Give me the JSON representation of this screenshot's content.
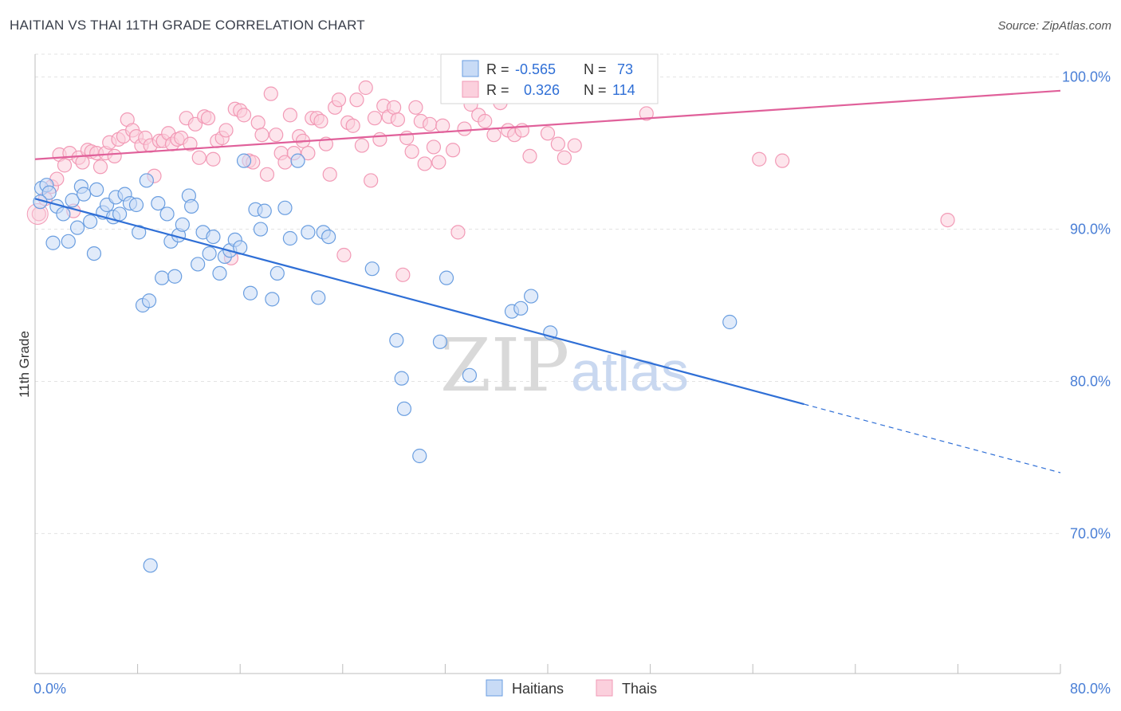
{
  "title": "HAITIAN VS THAI 11TH GRADE CORRELATION CHART",
  "source": "Source: ZipAtlas.com",
  "watermark": {
    "zip": "ZIP",
    "atlas": "atlas"
  },
  "colors": {
    "haitians": "#6a9ee0",
    "thais": "#f29ab6",
    "haitians_line": "#2f6fd6",
    "thais_line": "#e0609a"
  },
  "legend_top": [
    {
      "r_label": "R =",
      "r_value": "-0.565",
      "n_label": "N =",
      "n_value": "73"
    },
    {
      "r_label": "R =",
      "r_value": "0.326",
      "n_label": "N =",
      "n_value": "114"
    }
  ],
  "legend_bottom": [
    "Haitians",
    "Thais"
  ],
  "chart_data": {
    "type": "scatter",
    "title": "HAITIAN VS THAI 11TH GRADE CORRELATION CHART",
    "xlabel": "",
    "ylabel": "11th Grade",
    "xlim": [
      0,
      80
    ],
    "ylim": [
      60.8,
      101.5
    ],
    "x_tick_labels": [
      "0.0%",
      "80.0%"
    ],
    "y_ticks": [
      70,
      80,
      90,
      100
    ],
    "y_tick_labels": [
      "70.0%",
      "80.0%",
      "90.0%",
      "100.0%"
    ],
    "grid": true,
    "legend_placement": "top-center",
    "series": [
      {
        "name": "Haitians",
        "trend": {
          "x0": 0,
          "y0": 92.0,
          "x1": 60,
          "y1": 78.5,
          "dashed_to_x": 80,
          "dashed_to_y": 74.0
        },
        "points": [
          [
            0.5,
            92.7
          ],
          [
            0.9,
            92.9
          ],
          [
            1.1,
            92.4
          ],
          [
            1.4,
            89.1
          ],
          [
            1.7,
            91.5
          ],
          [
            2.2,
            91.0
          ],
          [
            2.6,
            89.2
          ],
          [
            2.9,
            91.9
          ],
          [
            3.3,
            90.1
          ],
          [
            3.6,
            92.8
          ],
          [
            3.8,
            92.3
          ],
          [
            4.3,
            90.5
          ],
          [
            4.6,
            88.4
          ],
          [
            4.8,
            92.6
          ],
          [
            5.3,
            91.1
          ],
          [
            5.6,
            91.6
          ],
          [
            6.1,
            90.8
          ],
          [
            6.3,
            92.1
          ],
          [
            6.6,
            91.0
          ],
          [
            7.0,
            92.3
          ],
          [
            7.4,
            91.7
          ],
          [
            7.9,
            91.6
          ],
          [
            8.1,
            89.8
          ],
          [
            8.4,
            85.0
          ],
          [
            8.7,
            93.2
          ],
          [
            8.9,
            85.3
          ],
          [
            9.6,
            91.7
          ],
          [
            9.9,
            86.8
          ],
          [
            10.3,
            91.0
          ],
          [
            10.6,
            89.2
          ],
          [
            10.9,
            86.9
          ],
          [
            11.2,
            89.6
          ],
          [
            11.5,
            90.3
          ],
          [
            12.0,
            92.2
          ],
          [
            12.2,
            91.5
          ],
          [
            12.7,
            87.7
          ],
          [
            13.1,
            89.8
          ],
          [
            13.6,
            88.4
          ],
          [
            13.9,
            89.5
          ],
          [
            14.4,
            87.1
          ],
          [
            14.8,
            88.2
          ],
          [
            15.2,
            88.6
          ],
          [
            15.6,
            89.3
          ],
          [
            16.0,
            88.8
          ],
          [
            16.3,
            94.5
          ],
          [
            16.8,
            85.8
          ],
          [
            17.2,
            91.3
          ],
          [
            17.6,
            90.0
          ],
          [
            17.9,
            91.2
          ],
          [
            18.5,
            85.4
          ],
          [
            18.9,
            87.1
          ],
          [
            19.5,
            91.4
          ],
          [
            19.9,
            89.4
          ],
          [
            20.5,
            94.5
          ],
          [
            21.3,
            89.8
          ],
          [
            22.1,
            85.5
          ],
          [
            22.5,
            89.8
          ],
          [
            22.9,
            89.5
          ],
          [
            26.3,
            87.4
          ],
          [
            28.2,
            82.7
          ],
          [
            28.6,
            80.2
          ],
          [
            28.8,
            78.2
          ],
          [
            30.0,
            75.1
          ],
          [
            31.6,
            82.6
          ],
          [
            32.1,
            86.8
          ],
          [
            33.9,
            80.4
          ],
          [
            37.2,
            84.6
          ],
          [
            37.9,
            84.8
          ],
          [
            38.7,
            85.6
          ],
          [
            40.2,
            83.2
          ],
          [
            54.2,
            83.9
          ],
          [
            9.0,
            67.9
          ],
          [
            0.4,
            91.8
          ]
        ]
      },
      {
        "name": "Thais",
        "trend": {
          "x0": 0,
          "y0": 94.6,
          "x1": 80,
          "y1": 99.1
        },
        "points": [
          [
            0.3,
            91.0
          ],
          [
            0.8,
            92.0
          ],
          [
            1.3,
            92.8
          ],
          [
            1.7,
            93.3
          ],
          [
            1.9,
            94.9
          ],
          [
            2.3,
            94.2
          ],
          [
            2.7,
            95.0
          ],
          [
            3.0,
            91.2
          ],
          [
            3.4,
            94.7
          ],
          [
            3.7,
            94.4
          ],
          [
            4.1,
            95.2
          ],
          [
            4.4,
            95.1
          ],
          [
            4.8,
            95.0
          ],
          [
            5.1,
            94.1
          ],
          [
            5.5,
            95.0
          ],
          [
            5.8,
            95.7
          ],
          [
            6.2,
            94.8
          ],
          [
            6.5,
            95.9
          ],
          [
            6.9,
            96.1
          ],
          [
            7.2,
            97.2
          ],
          [
            7.6,
            96.5
          ],
          [
            7.9,
            96.1
          ],
          [
            8.3,
            95.5
          ],
          [
            8.6,
            96.0
          ],
          [
            9.0,
            95.5
          ],
          [
            9.3,
            93.5
          ],
          [
            9.7,
            95.8
          ],
          [
            10.0,
            95.8
          ],
          [
            10.4,
            96.3
          ],
          [
            10.7,
            95.6
          ],
          [
            11.1,
            95.9
          ],
          [
            11.4,
            96.0
          ],
          [
            11.8,
            97.3
          ],
          [
            12.1,
            95.6
          ],
          [
            12.5,
            96.9
          ],
          [
            12.8,
            94.7
          ],
          [
            13.2,
            97.4
          ],
          [
            13.5,
            97.3
          ],
          [
            13.9,
            94.6
          ],
          [
            14.2,
            95.8
          ],
          [
            14.6,
            96.0
          ],
          [
            14.9,
            96.5
          ],
          [
            15.3,
            88.1
          ],
          [
            15.6,
            97.9
          ],
          [
            16.0,
            97.8
          ],
          [
            16.3,
            97.5
          ],
          [
            16.7,
            94.5
          ],
          [
            17.0,
            94.4
          ],
          [
            17.4,
            97.0
          ],
          [
            17.7,
            96.2
          ],
          [
            18.1,
            93.6
          ],
          [
            18.4,
            98.9
          ],
          [
            18.8,
            96.2
          ],
          [
            19.2,
            95.0
          ],
          [
            19.5,
            94.4
          ],
          [
            19.9,
            97.5
          ],
          [
            20.2,
            95.0
          ],
          [
            20.6,
            96.1
          ],
          [
            20.9,
            95.8
          ],
          [
            21.3,
            95.0
          ],
          [
            21.6,
            97.3
          ],
          [
            22.0,
            97.3
          ],
          [
            22.3,
            97.1
          ],
          [
            22.7,
            95.6
          ],
          [
            23.0,
            93.6
          ],
          [
            23.4,
            98.0
          ],
          [
            23.7,
            98.5
          ],
          [
            24.1,
            88.3
          ],
          [
            24.4,
            97.0
          ],
          [
            24.8,
            96.8
          ],
          [
            25.1,
            98.5
          ],
          [
            25.5,
            95.5
          ],
          [
            25.8,
            99.3
          ],
          [
            26.2,
            93.2
          ],
          [
            26.5,
            97.3
          ],
          [
            26.9,
            95.9
          ],
          [
            27.2,
            98.1
          ],
          [
            27.6,
            97.4
          ],
          [
            28.0,
            98.0
          ],
          [
            28.3,
            97.2
          ],
          [
            28.7,
            87.0
          ],
          [
            29.0,
            96.0
          ],
          [
            29.4,
            95.1
          ],
          [
            29.7,
            98.0
          ],
          [
            30.1,
            97.1
          ],
          [
            30.4,
            94.3
          ],
          [
            30.8,
            96.9
          ],
          [
            31.1,
            95.4
          ],
          [
            31.5,
            94.4
          ],
          [
            31.8,
            96.8
          ],
          [
            32.2,
            100.1
          ],
          [
            32.6,
            95.2
          ],
          [
            33.0,
            89.8
          ],
          [
            33.5,
            96.6
          ],
          [
            34.0,
            98.2
          ],
          [
            34.6,
            97.5
          ],
          [
            35.1,
            97.1
          ],
          [
            35.8,
            96.2
          ],
          [
            36.3,
            98.3
          ],
          [
            36.9,
            96.5
          ],
          [
            37.4,
            96.2
          ],
          [
            38.0,
            96.5
          ],
          [
            38.6,
            94.8
          ],
          [
            39.4,
            99.4
          ],
          [
            40.0,
            96.3
          ],
          [
            40.8,
            95.6
          ],
          [
            41.3,
            94.7
          ],
          [
            42.1,
            95.5
          ],
          [
            43.1,
            99.8
          ],
          [
            45.4,
            100.0
          ],
          [
            47.7,
            97.6
          ],
          [
            56.5,
            94.6
          ],
          [
            58.3,
            94.5
          ],
          [
            71.2,
            90.6
          ]
        ]
      }
    ]
  }
}
